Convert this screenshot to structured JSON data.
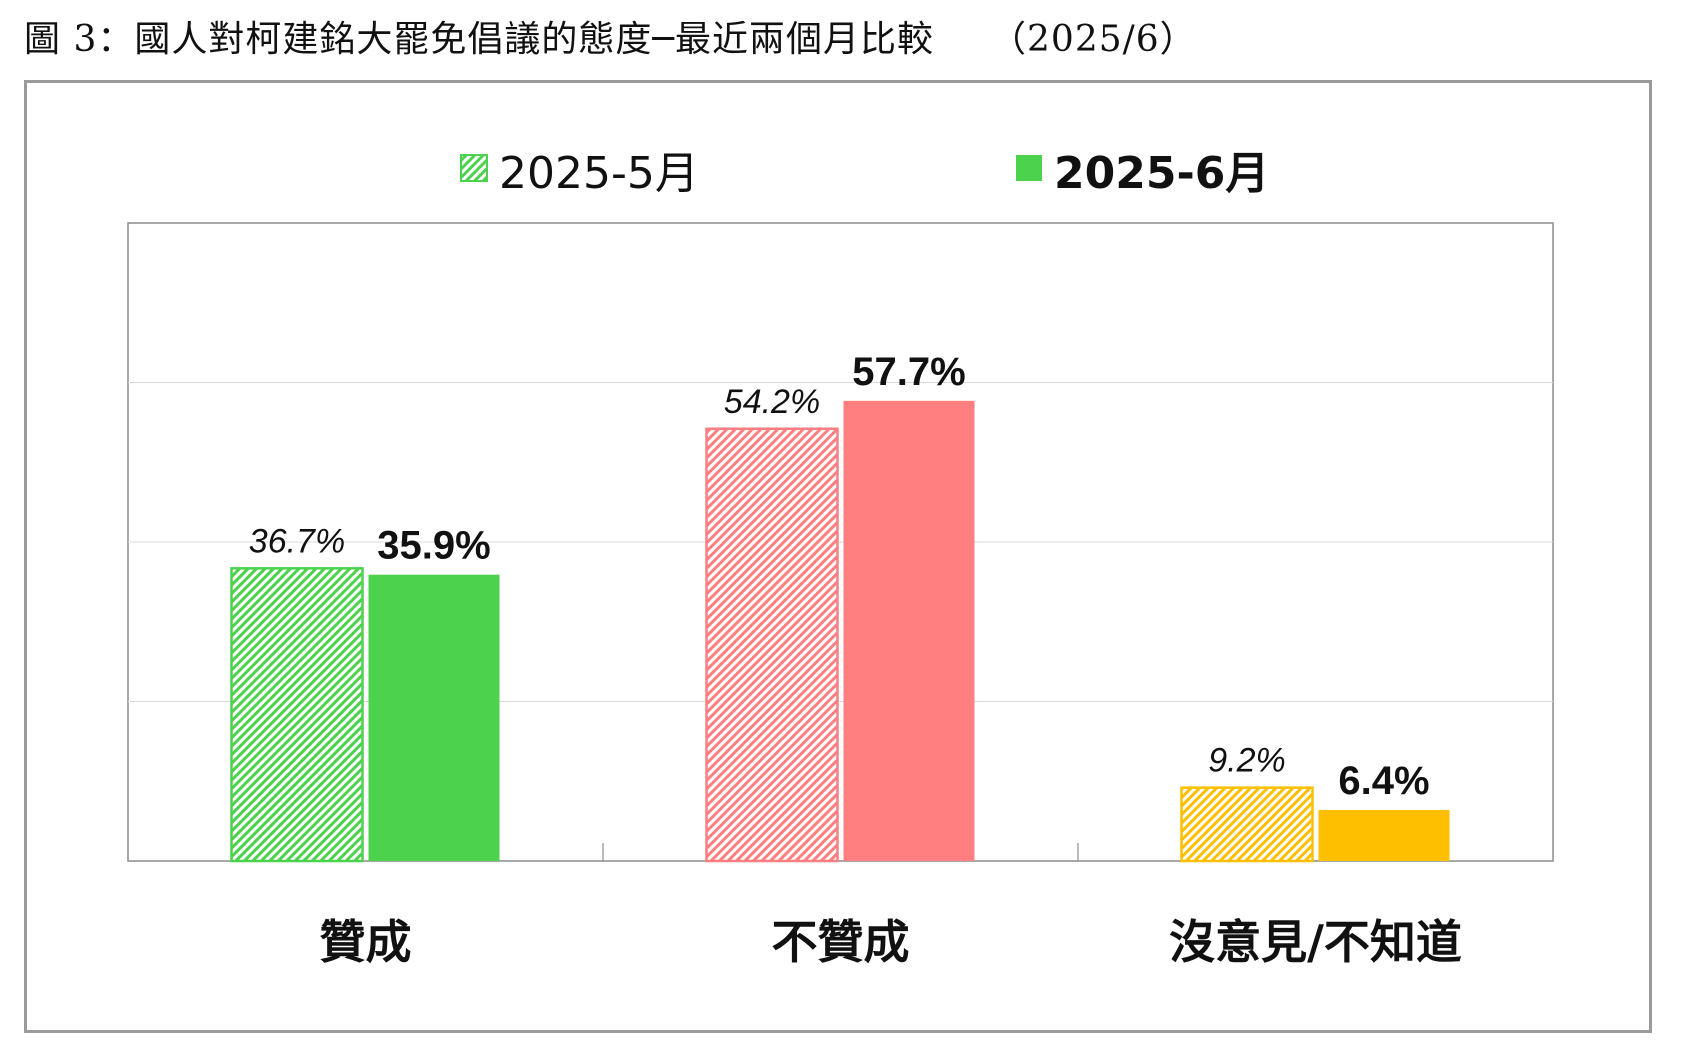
{
  "figure_title": "圖 3：國人對柯建銘大罷免倡議的態度─最近兩個月比較　　（2025/6）",
  "chart_data": {
    "type": "bar",
    "categories": [
      "贊成",
      "不贊成",
      "沒意見/不知道"
    ],
    "series": [
      {
        "name": "2025-5月",
        "values": [
          36.7,
          54.2,
          9.2
        ],
        "labels": [
          "36.7%",
          "54.2%",
          "9.2%"
        ],
        "style": "hatched",
        "label_style": "italic"
      },
      {
        "name": "2025-6月",
        "values": [
          35.9,
          57.7,
          6.4
        ],
        "labels": [
          "35.9%",
          "57.7%",
          "6.4%"
        ],
        "style": "solid",
        "label_style": "bold"
      }
    ],
    "category_colors": [
      "#4cd24c",
      "#ff7f80",
      "#fdbf00"
    ],
    "ylim": [
      0,
      80
    ],
    "grid": true,
    "legend_position": "top-center",
    "xlabel": "",
    "ylabel": ""
  }
}
